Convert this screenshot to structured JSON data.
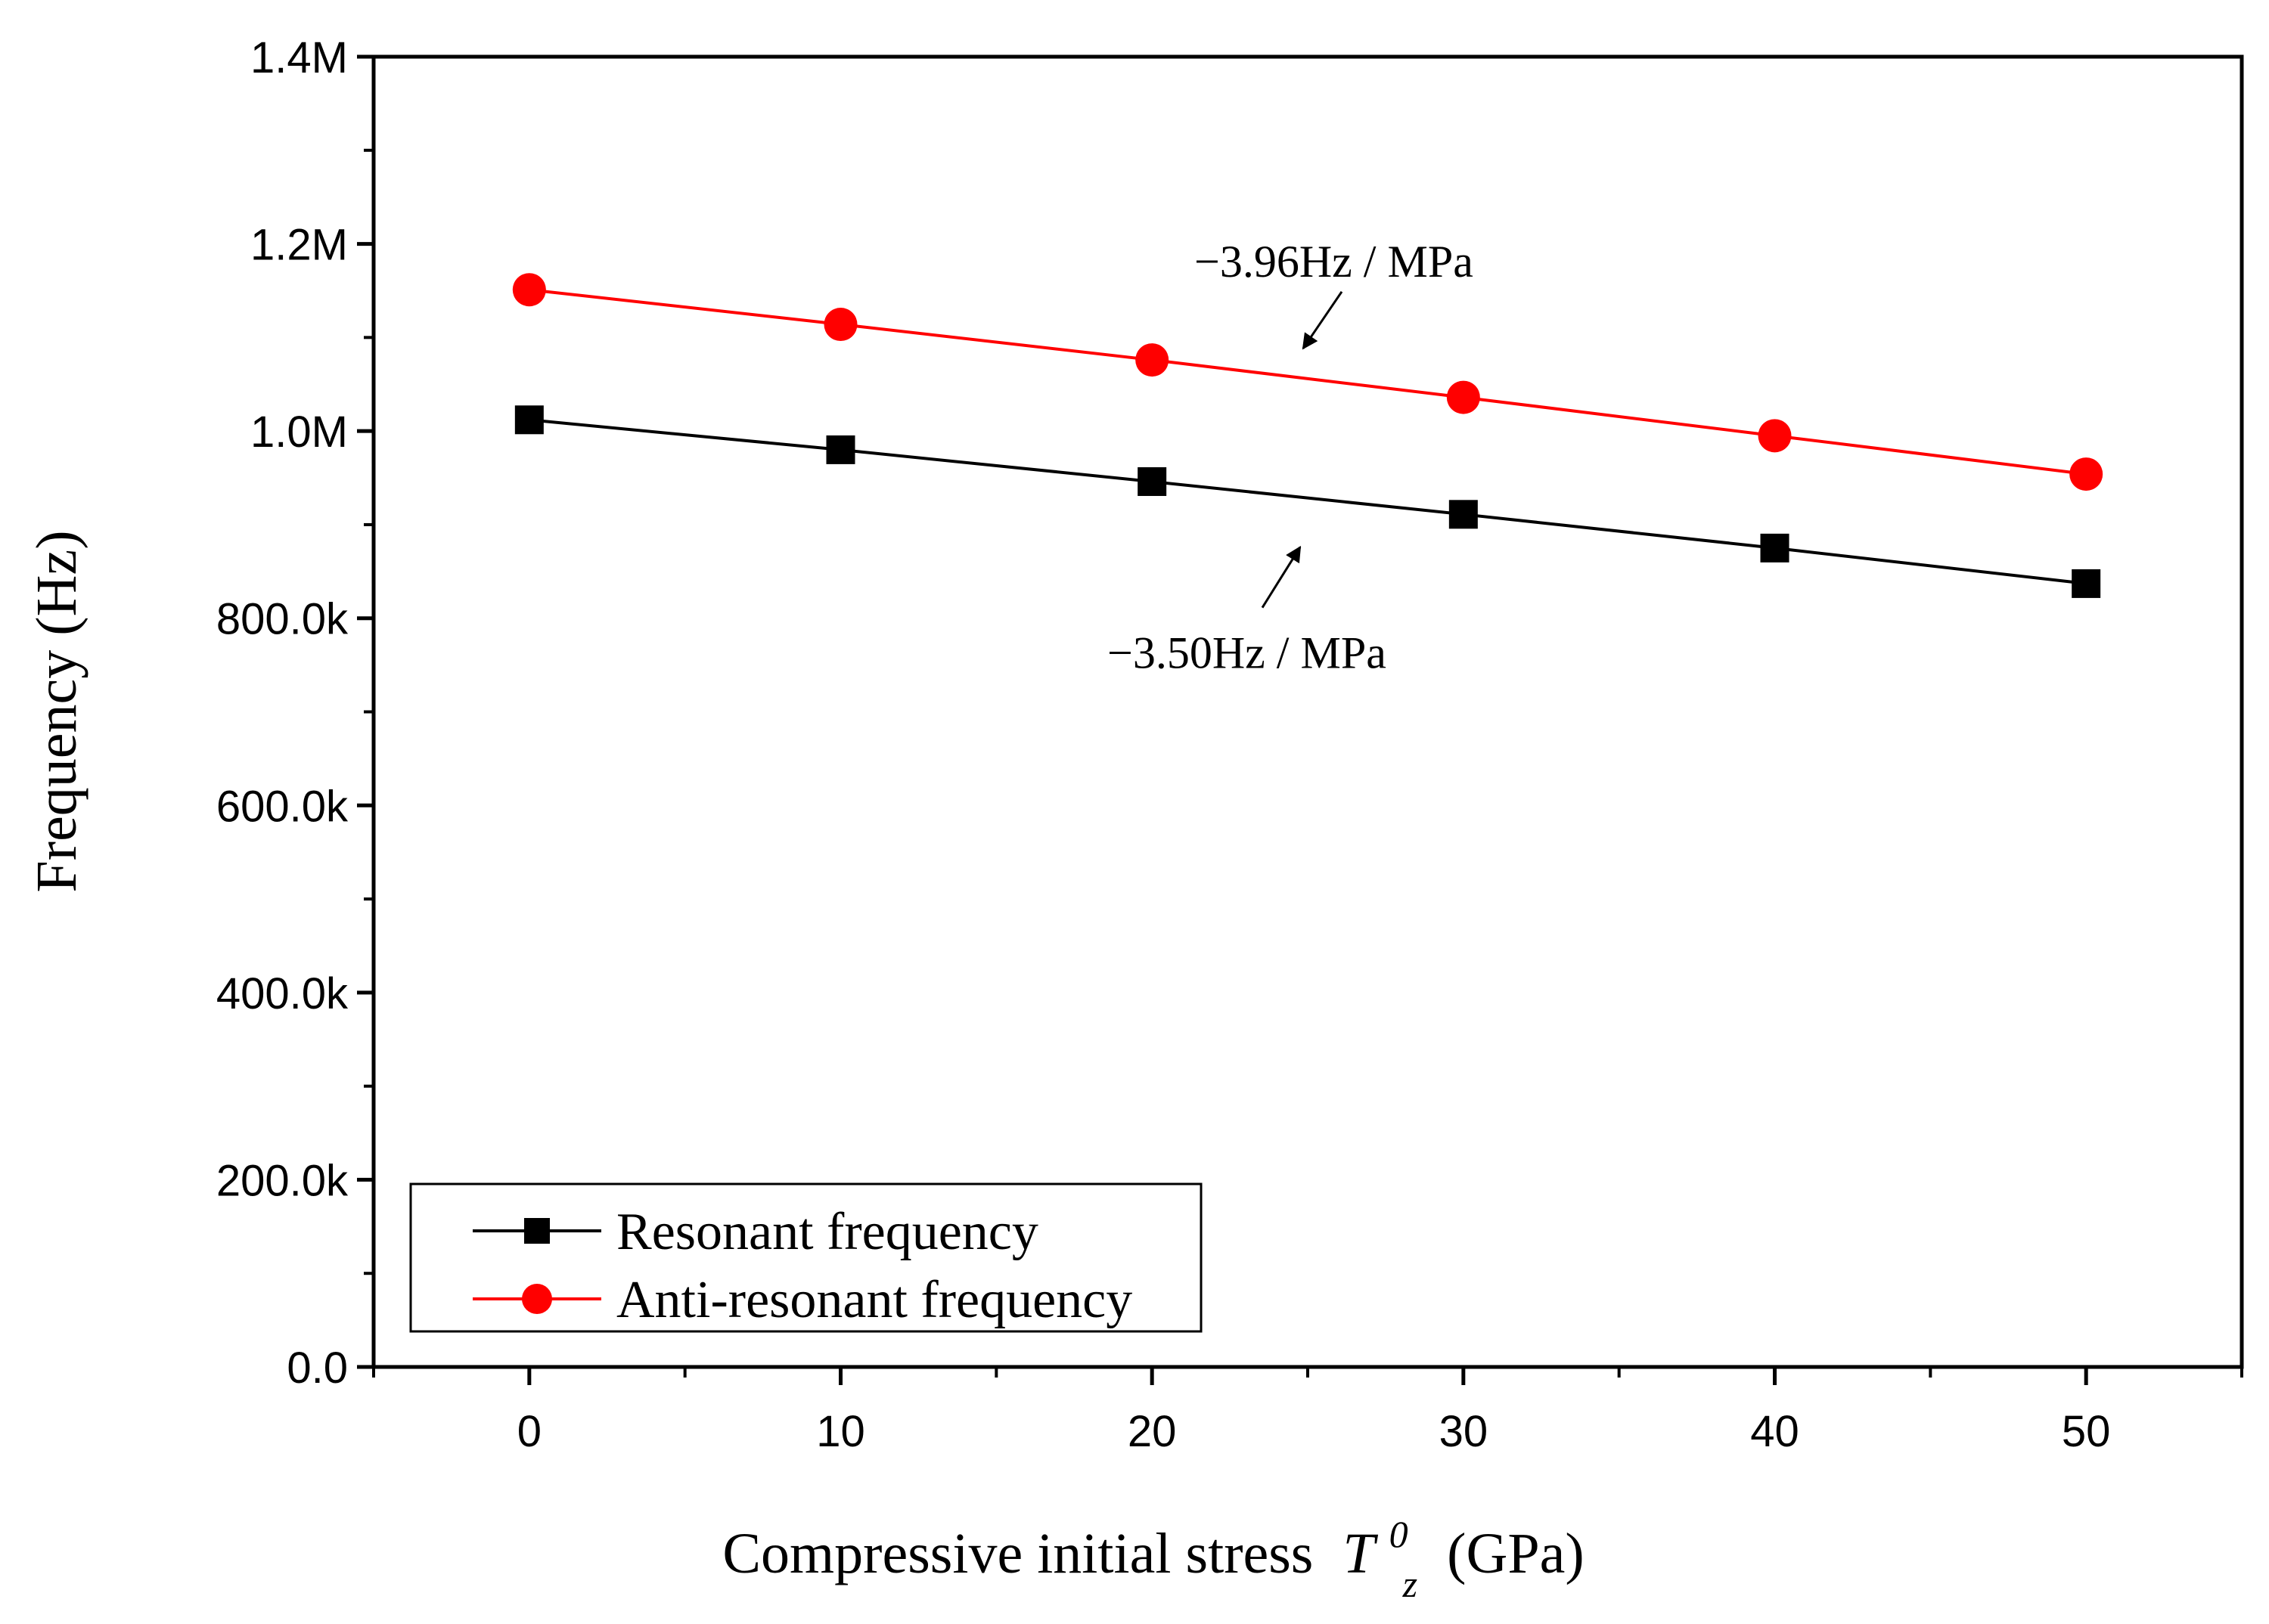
{
  "chart_data": {
    "type": "line",
    "title": "",
    "xlabel": "Compressive initial stress",
    "xlabel_symbol": "T",
    "xlabel_sub": "z",
    "xlabel_sup": "0",
    "xlabel_unit": "(GPa)",
    "ylabel": "Frequency (Hz)",
    "xlim": [
      -5,
      55
    ],
    "ylim": [
      0,
      1400000
    ],
    "x": [
      0,
      10,
      20,
      30,
      40,
      50
    ],
    "x_tick_values": [
      0,
      10,
      20,
      30,
      40,
      50
    ],
    "x_tick_labels": [
      "0",
      "10",
      "20",
      "30",
      "40",
      "50"
    ],
    "y_tick_values": [
      0,
      200000,
      400000,
      600000,
      800000,
      1000000,
      1200000,
      1400000
    ],
    "y_tick_labels": [
      "0.0",
      "200.0k",
      "400.0k",
      "600.0k",
      "800.0k",
      "1.0M",
      "1.2M",
      "1.4M"
    ],
    "grid": false,
    "legend_position": "bottom-left",
    "series": [
      {
        "name": "Resonant frequency",
        "color": "#000000",
        "marker": "square",
        "values": [
          1012000,
          980000,
          946000,
          911000,
          875000,
          837000
        ]
      },
      {
        "name": "Anti-resonant frequency",
        "color": "#ff0000",
        "marker": "circle",
        "values": [
          1151000,
          1114000,
          1076000,
          1036000,
          995000,
          954000
        ]
      }
    ],
    "annotations": [
      {
        "text": "−3.96Hz / MPa",
        "series": 1,
        "x": 25
      },
      {
        "text": "−3.50Hz / MPa",
        "series": 0,
        "x": 25
      }
    ]
  }
}
